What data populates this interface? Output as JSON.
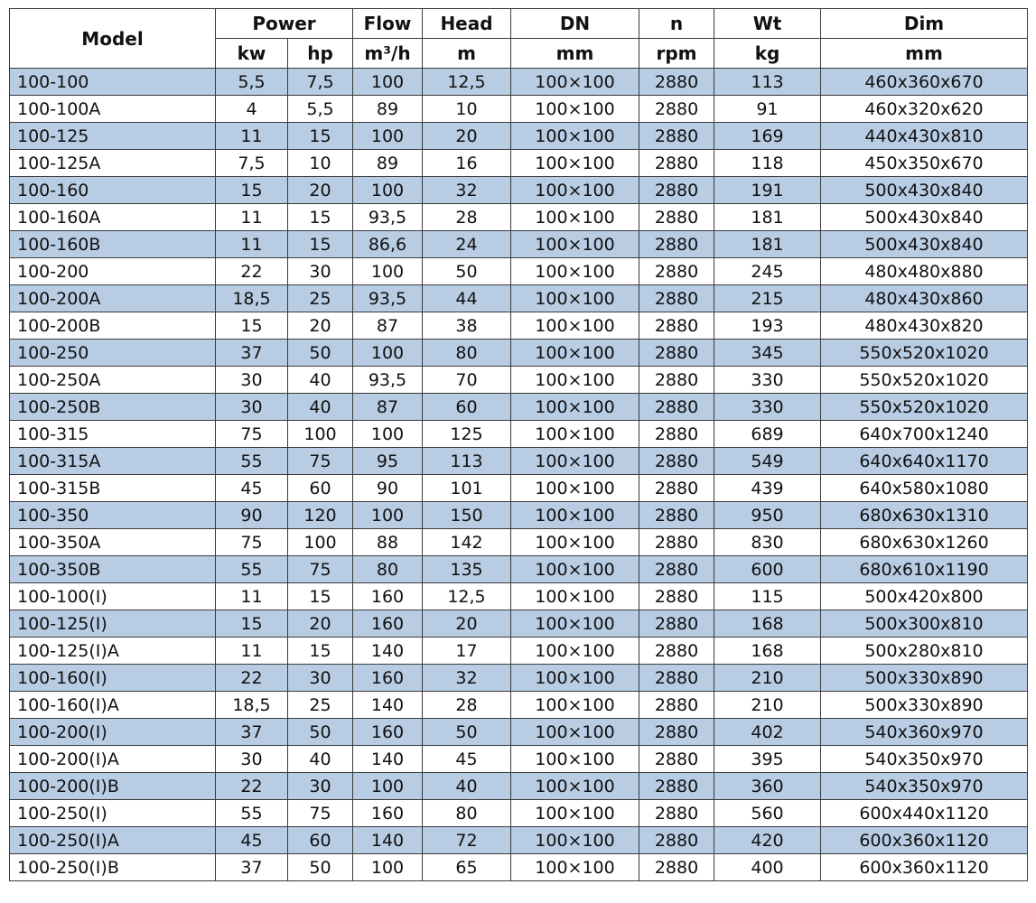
{
  "header": {
    "model": "Model",
    "power": "Power",
    "kw": "kw",
    "hp": "hp",
    "flow": "Flow",
    "flow_unit": "m³/h",
    "head": "Head",
    "head_unit": "m",
    "dn": "DN",
    "dn_unit": "mm",
    "n": "n",
    "n_unit": "rpm",
    "wt": "Wt",
    "wt_unit": "kg",
    "dim": "Dim",
    "dim_unit": "mm"
  },
  "style": {
    "row_alt_color": "#b8cce4",
    "row_base_color": "#ffffff",
    "border_color": "#3a3a3a"
  },
  "chart_data": {
    "type": "table",
    "title": "Pump specification table",
    "columns": [
      "Model",
      "Power kw",
      "Power hp",
      "Flow m³/h",
      "Head m",
      "DN mm",
      "n rpm",
      "Wt kg",
      "Dim mm"
    ],
    "rows": [
      [
        "100-100",
        "5,5",
        "7,5",
        "100",
        "12,5",
        "100×100",
        "2880",
        "113",
        "460x360x670"
      ],
      [
        "100-100A",
        "4",
        "5,5",
        "89",
        "10",
        "100×100",
        "2880",
        "91",
        "460x320x620"
      ],
      [
        "100-125",
        "11",
        "15",
        "100",
        "20",
        "100×100",
        "2880",
        "169",
        "440x430x810"
      ],
      [
        "100-125A",
        "7,5",
        "10",
        "89",
        "16",
        "100×100",
        "2880",
        "118",
        "450x350x670"
      ],
      [
        "100-160",
        "15",
        "20",
        "100",
        "32",
        "100×100",
        "2880",
        "191",
        "500x430x840"
      ],
      [
        "100-160A",
        "11",
        "15",
        "93,5",
        "28",
        "100×100",
        "2880",
        "181",
        "500x430x840"
      ],
      [
        "100-160B",
        "11",
        "15",
        "86,6",
        "24",
        "100×100",
        "2880",
        "181",
        "500x430x840"
      ],
      [
        "100-200",
        "22",
        "30",
        "100",
        "50",
        "100×100",
        "2880",
        "245",
        "480x480x880"
      ],
      [
        "100-200A",
        "18,5",
        "25",
        "93,5",
        "44",
        "100×100",
        "2880",
        "215",
        "480x430x860"
      ],
      [
        "100-200B",
        "15",
        "20",
        "87",
        "38",
        "100×100",
        "2880",
        "193",
        "480x430x820"
      ],
      [
        "100-250",
        "37",
        "50",
        "100",
        "80",
        "100×100",
        "2880",
        "345",
        "550x520x1020"
      ],
      [
        "100-250A",
        "30",
        "40",
        "93,5",
        "70",
        "100×100",
        "2880",
        "330",
        "550x520x1020"
      ],
      [
        "100-250B",
        "30",
        "40",
        "87",
        "60",
        "100×100",
        "2880",
        "330",
        "550x520x1020"
      ],
      [
        "100-315",
        "75",
        "100",
        "100",
        "125",
        "100×100",
        "2880",
        "689",
        "640x700x1240"
      ],
      [
        "100-315A",
        "55",
        "75",
        "95",
        "113",
        "100×100",
        "2880",
        "549",
        "640x640x1170"
      ],
      [
        "100-315B",
        "45",
        "60",
        "90",
        "101",
        "100×100",
        "2880",
        "439",
        "640x580x1080"
      ],
      [
        "100-350",
        "90",
        "120",
        "100",
        "150",
        "100×100",
        "2880",
        "950",
        "680x630x1310"
      ],
      [
        "100-350A",
        "75",
        "100",
        "88",
        "142",
        "100×100",
        "2880",
        "830",
        "680x630x1260"
      ],
      [
        "100-350B",
        "55",
        "75",
        "80",
        "135",
        "100×100",
        "2880",
        "600",
        "680x610x1190"
      ],
      [
        "100-100(I)",
        "11",
        "15",
        "160",
        "12,5",
        "100×100",
        "2880",
        "115",
        "500x420x800"
      ],
      [
        "100-125(I)",
        "15",
        "20",
        "160",
        "20",
        "100×100",
        "2880",
        "168",
        "500x300x810"
      ],
      [
        "100-125(I)A",
        "11",
        "15",
        "140",
        "17",
        "100×100",
        "2880",
        "168",
        "500x280x810"
      ],
      [
        "100-160(I)",
        "22",
        "30",
        "160",
        "32",
        "100×100",
        "2880",
        "210",
        "500x330x890"
      ],
      [
        "100-160(I)A",
        "18,5",
        "25",
        "140",
        "28",
        "100×100",
        "2880",
        "210",
        "500x330x890"
      ],
      [
        "100-200(I)",
        "37",
        "50",
        "160",
        "50",
        "100×100",
        "2880",
        "402",
        "540x360x970"
      ],
      [
        "100-200(I)A",
        "30",
        "40",
        "140",
        "45",
        "100×100",
        "2880",
        "395",
        "540x350x970"
      ],
      [
        "100-200(I)B",
        "22",
        "30",
        "100",
        "40",
        "100×100",
        "2880",
        "360",
        "540x350x970"
      ],
      [
        "100-250(I)",
        "55",
        "75",
        "160",
        "80",
        "100×100",
        "2880",
        "560",
        "600x440x1120"
      ],
      [
        "100-250(I)A",
        "45",
        "60",
        "140",
        "72",
        "100×100",
        "2880",
        "420",
        "600x360x1120"
      ],
      [
        "100-250(I)B",
        "37",
        "50",
        "100",
        "65",
        "100×100",
        "2880",
        "400",
        "600x360x1120"
      ]
    ]
  }
}
